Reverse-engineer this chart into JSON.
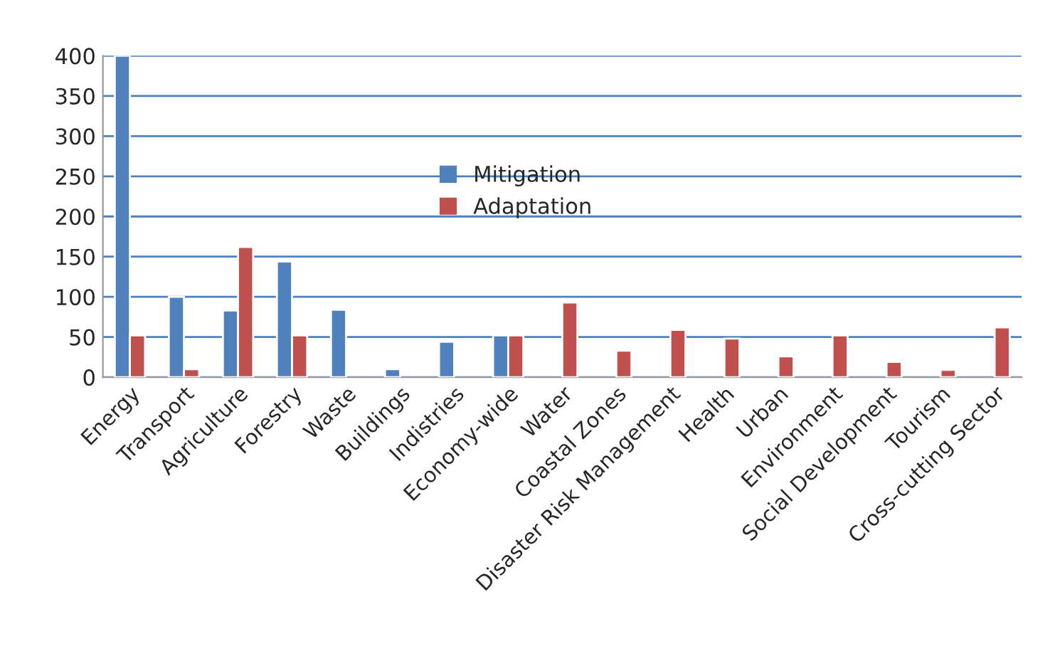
{
  "chart_data": {
    "type": "bar",
    "categories": [
      "Energy",
      "Transport",
      "Agriculture",
      "Forestry",
      "Waste",
      "Buildings",
      "Indistries",
      "Economy-wide",
      "Water",
      "Coastal Zones",
      "Disaster Risk Management",
      "Health",
      "Urban",
      "Environment",
      "Social Development",
      "Tourism",
      "Cross-cutting Sector"
    ],
    "series": [
      {
        "name": "Mitigation",
        "color": "#4f81bd",
        "values": [
          400,
          100,
          83,
          144,
          84,
          10,
          44,
          52,
          null,
          null,
          null,
          null,
          null,
          null,
          null,
          null,
          null
        ]
      },
      {
        "name": "Adaptation",
        "color": "#c0504d",
        "values": [
          52,
          10,
          162,
          52,
          null,
          null,
          null,
          52,
          93,
          33,
          59,
          48,
          26,
          52,
          19,
          9,
          62
        ]
      }
    ],
    "ylim": [
      0,
      400
    ],
    "yticks": [
      0,
      50,
      100,
      150,
      200,
      250,
      300,
      350,
      400
    ],
    "grid": "y",
    "legend": "top"
  }
}
